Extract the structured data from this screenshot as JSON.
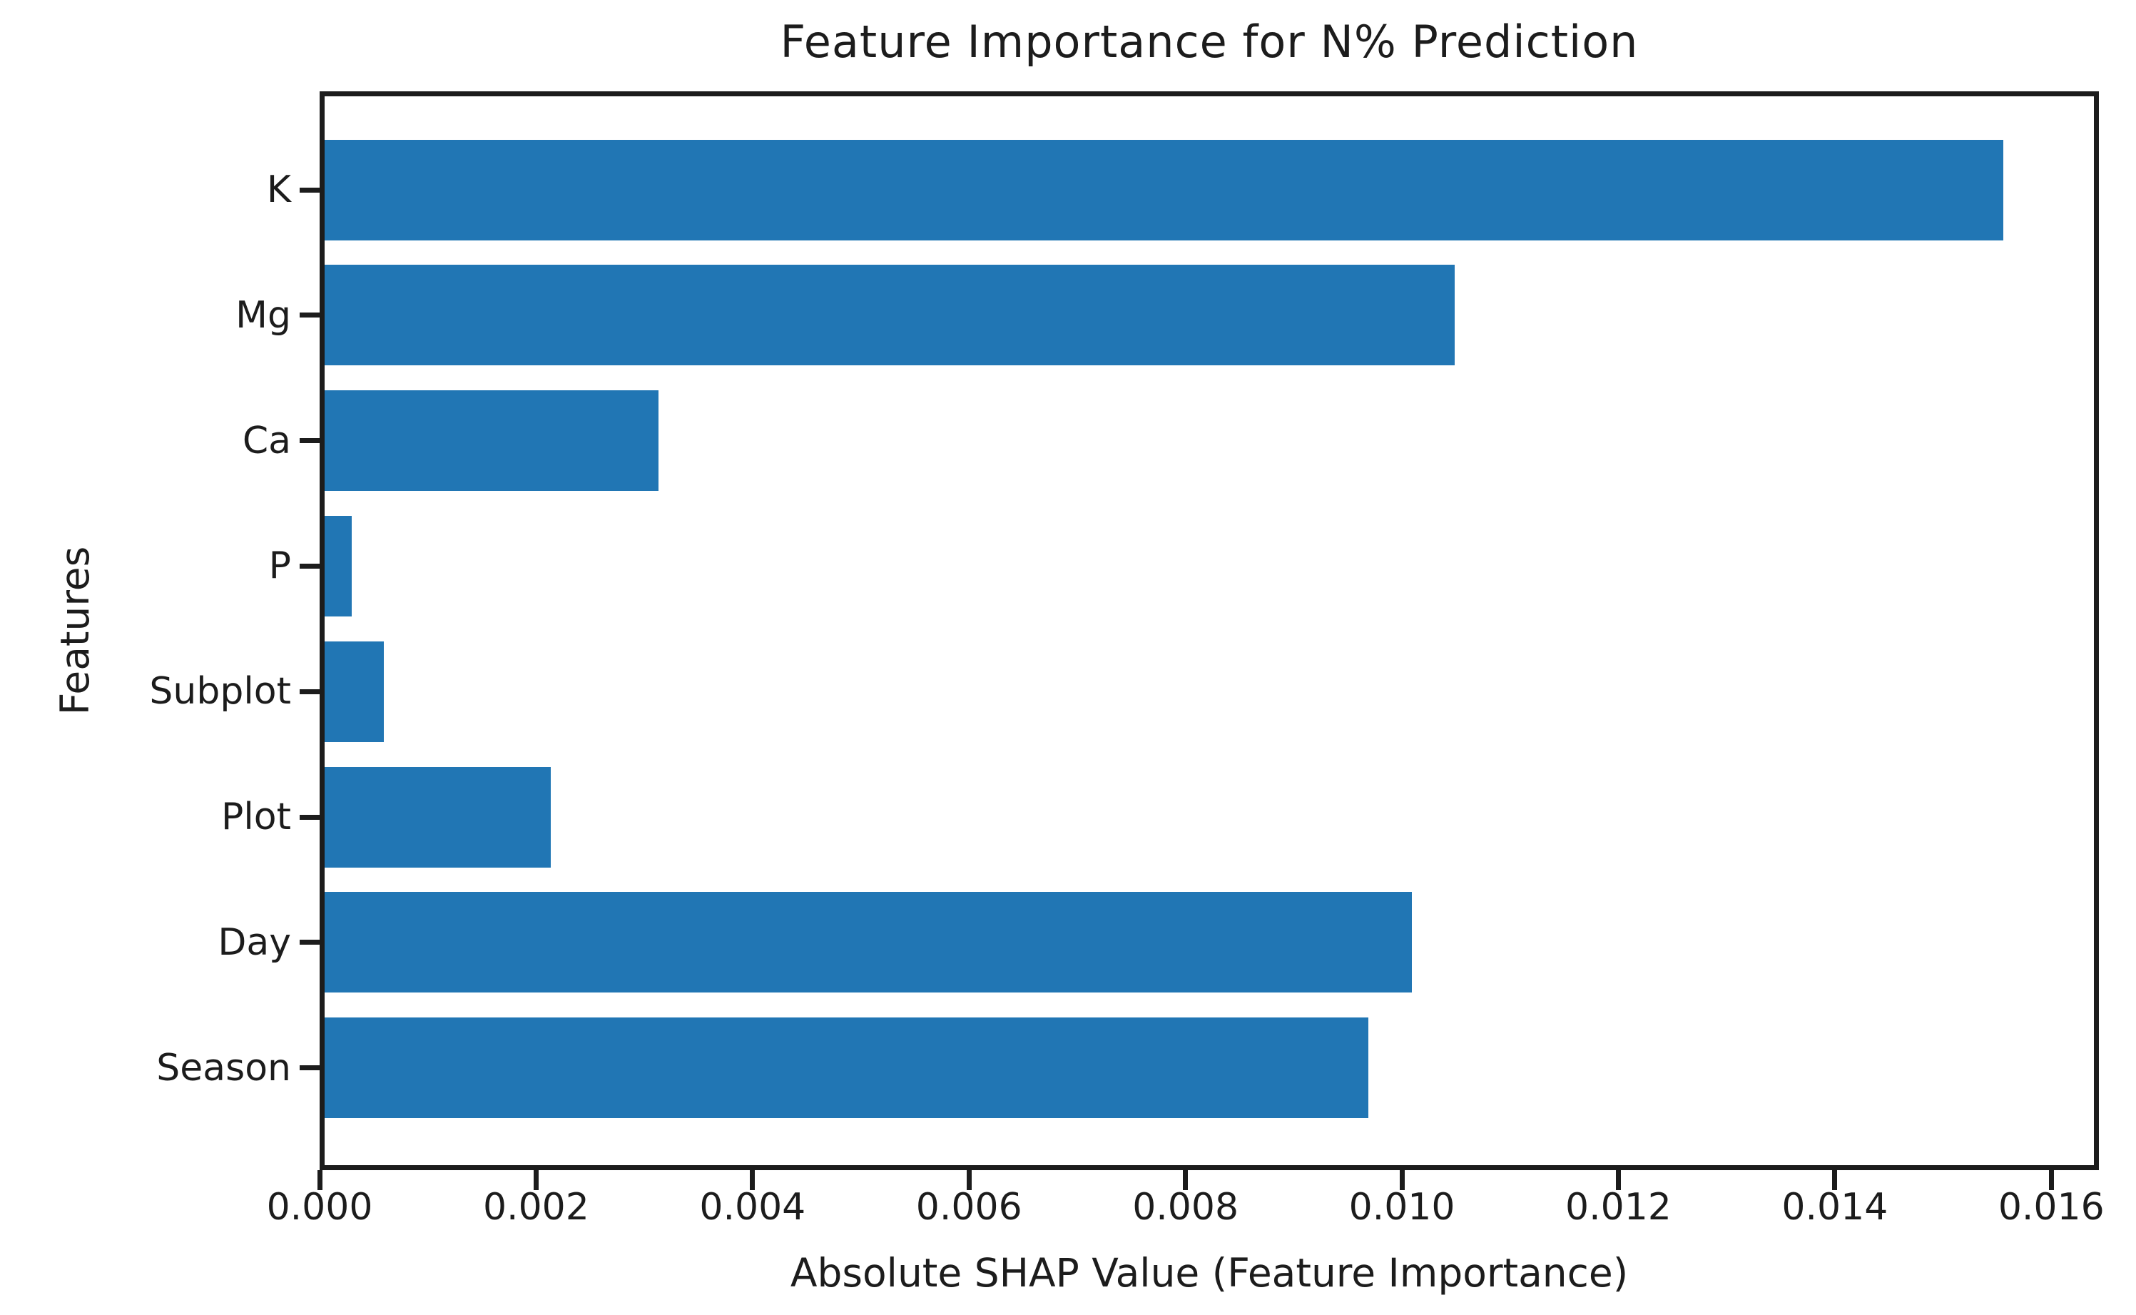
{
  "chart_data": {
    "type": "bar",
    "orientation": "horizontal",
    "title": "Feature Importance for N% Prediction",
    "xlabel": "Absolute SHAP Value (Feature Importance)",
    "ylabel": "Features",
    "categories": [
      "K",
      "Mg",
      "Ca",
      "P",
      "Subplot",
      "Plot",
      "Day",
      "Season"
    ],
    "values": [
      0.0156,
      0.0105,
      0.0031,
      0.00025,
      0.00055,
      0.0021,
      0.0101,
      0.0097
    ],
    "xlim": [
      0,
      0.01644
    ],
    "xticks": [
      0.0,
      0.002,
      0.004,
      0.006,
      0.008,
      0.01,
      0.012,
      0.014,
      0.016
    ],
    "xtick_labels": [
      "0.000",
      "0.002",
      "0.004",
      "0.006",
      "0.008",
      "0.010",
      "0.012",
      "0.014",
      "0.016"
    ],
    "grid": false,
    "legend": null,
    "bar_color": "#2176b4",
    "axis_color": "#1c1c1c",
    "text_color": "#1c1c1c",
    "background_color": "#ffffff"
  }
}
